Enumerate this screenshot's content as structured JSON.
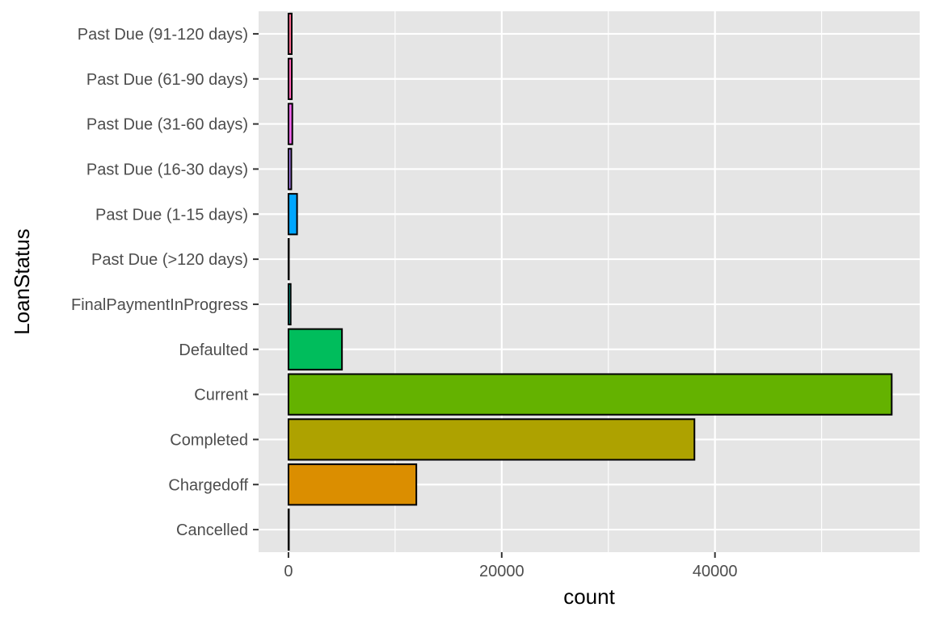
{
  "chart_data": {
    "type": "bar",
    "orientation": "horizontal",
    "title": "",
    "xlabel": "count",
    "ylabel": "LoanStatus",
    "xlim": [
      -2800,
      59200
    ],
    "x_ticks": [
      0,
      20000,
      40000
    ],
    "x_tick_labels": [
      "0",
      "20000",
      "40000"
    ],
    "grid": true,
    "panel_background": "#e5e5e5",
    "grid_color": "#ffffff",
    "bar_outline": "#000000",
    "legend": "none",
    "categories": [
      "Cancelled",
      "Chargedoff",
      "Completed",
      "Current",
      "Defaulted",
      "FinalPaymentInProgress",
      "Past Due (>120 days)",
      "Past Due (1-15 days)",
      "Past Due (16-30 days)",
      "Past Due (31-60 days)",
      "Past Due (61-90 days)",
      "Past Due (91-120 days)"
    ],
    "values": [
      5,
      11992,
      38074,
      56576,
      5018,
      205,
      16,
      806,
      265,
      361,
      313,
      304
    ],
    "colors": [
      "#f8766d",
      "#db8e00",
      "#aea200",
      "#64b200",
      "#00bd5c",
      "#00c1a7",
      "#00bade",
      "#00a6ff",
      "#b385ff",
      "#ef67eb",
      "#ff63b6",
      "#ff6c91"
    ]
  }
}
